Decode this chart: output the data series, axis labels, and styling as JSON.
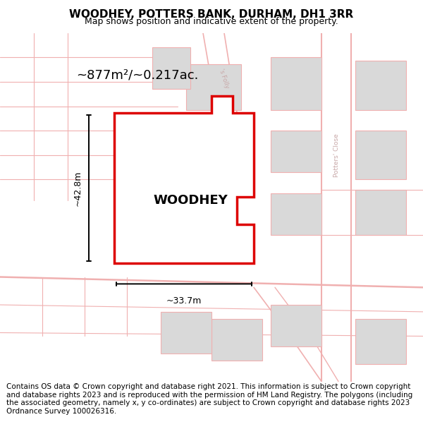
{
  "title": "WOODHEY, POTTERS BANK, DURHAM, DH1 3RR",
  "subtitle": "Map shows position and indicative extent of the property.",
  "footer": "Contains OS data © Crown copyright and database right 2021. This information is subject to Crown copyright and database rights 2023 and is reproduced with the permission of HM Land Registry. The polygons (including the associated geometry, namely x, y co-ordinates) are subject to Crown copyright and database rights 2023 Ordnance Survey 100026316.",
  "area_label": "~877m²/~0.217ac.",
  "property_label": "WOODHEY",
  "dim_width": "~33.7m",
  "dim_height": "~42.8m",
  "bg_color": "#ffffff",
  "map_bg": "#fdf5f5",
  "road_color": "#f0b0b0",
  "building_color": "#d9d9d9",
  "property_outline_color": "#dd0000",
  "street_text_color": "#c8a8a8",
  "title_fontsize": 11,
  "subtitle_fontsize": 9,
  "footer_fontsize": 7.5,
  "figsize": [
    6.0,
    6.25
  ],
  "dpi": 100
}
